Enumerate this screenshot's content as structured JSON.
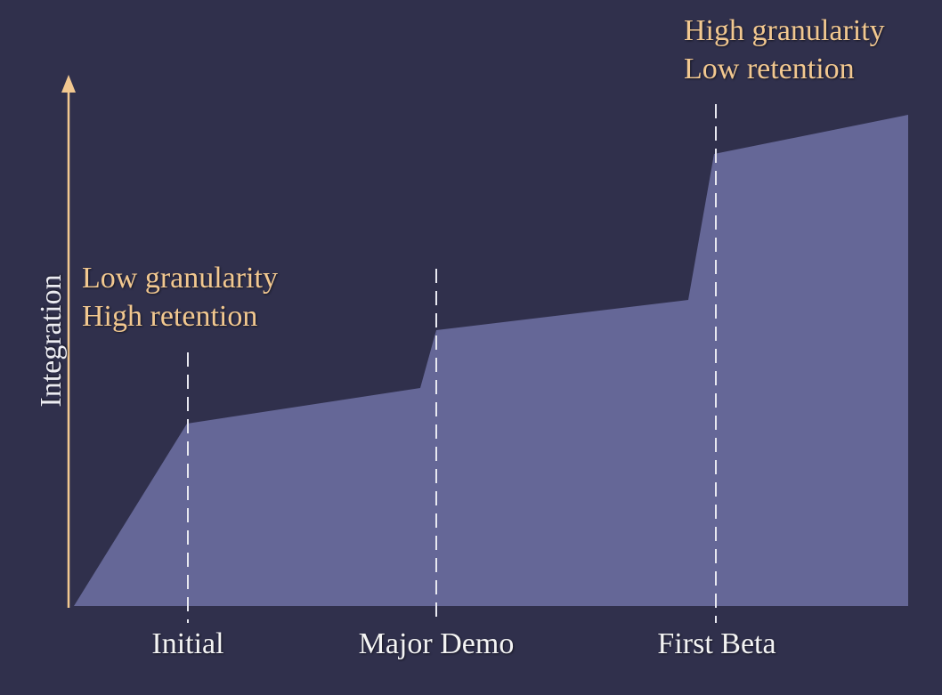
{
  "colors": {
    "background": "#30304c",
    "area_fill": "#656797",
    "axis_arrow": "#f2c890",
    "milestone_line": "#e8e8f0",
    "annotation_text": "#f2c890",
    "tick_text": "#f4f4f4"
  },
  "chart_data": {
    "type": "area",
    "ylabel": "Integration",
    "xlabel": "",
    "milestones": [
      "Initial",
      "Major Demo",
      "First Beta"
    ],
    "annotations": [
      {
        "lines": [
          "Low granularity",
          "High retention"
        ],
        "near": "Initial"
      },
      {
        "lines": [
          "High granularity",
          "Low retention"
        ],
        "near": "First Beta"
      }
    ],
    "x_ticks_shown": false,
    "y_ticks_shown": false,
    "grid": false
  }
}
